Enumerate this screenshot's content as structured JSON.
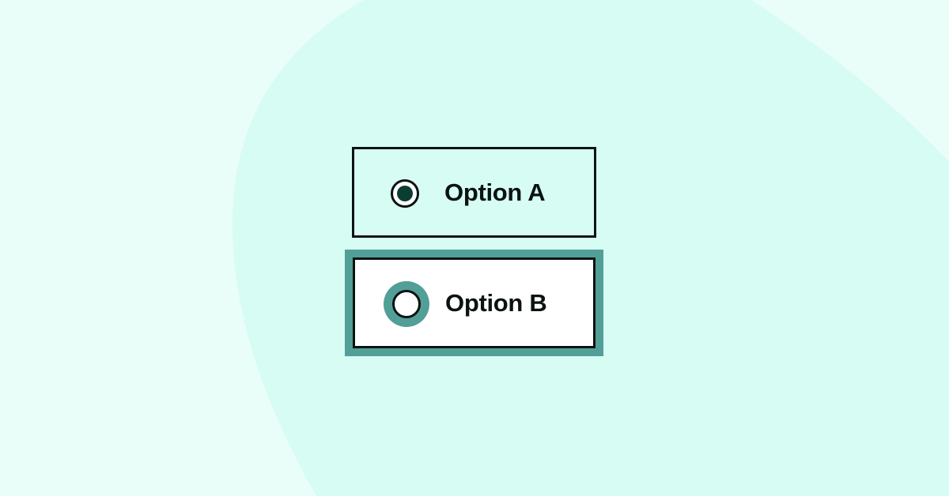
{
  "colors": {
    "background_light": "#e9fdf9",
    "background_blob": "#d6fcf3",
    "border": "#0b1310",
    "focus_ring": "#529f98",
    "selected_dot": "#0c3d33",
    "option_b_fill": "#ffffff"
  },
  "radio_group": {
    "options": [
      {
        "label": "Option A",
        "selected": true,
        "focused": false,
        "icon": "radio-selected-icon"
      },
      {
        "label": "Option B",
        "selected": false,
        "focused": true,
        "icon": "radio-unselected-icon"
      }
    ]
  }
}
